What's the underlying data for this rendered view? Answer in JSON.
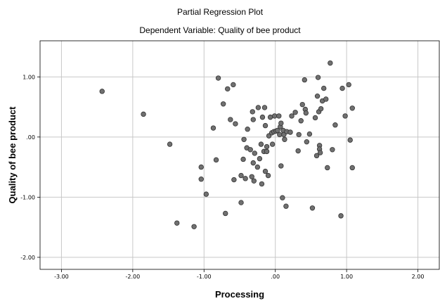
{
  "chart_data": {
    "type": "scatter",
    "title": "Partial Regression Plot",
    "subtitle": "Dependent Variable: Quality of bee product",
    "xlabel": "Processing",
    "ylabel": "Quality of bee product",
    "xlim": [
      -3.3,
      2.3
    ],
    "ylim": [
      -2.2,
      1.6
    ],
    "x_ticks": [
      {
        "value": -3,
        "label": "-3.00"
      },
      {
        "value": -2,
        "label": "-2.00"
      },
      {
        "value": -1,
        "label": "-1.00"
      },
      {
        "value": 0,
        "label": ".00"
      },
      {
        "value": 1,
        "label": "1.00"
      },
      {
        "value": 2,
        "label": "2.00"
      }
    ],
    "y_ticks": [
      {
        "value": 1,
        "label": "1.00"
      },
      {
        "value": 0,
        "label": ".00"
      },
      {
        "value": -1,
        "label": "-1.00"
      },
      {
        "value": -2,
        "label": "-2.00"
      }
    ],
    "grid": true,
    "marker_color": "#707070",
    "grid_color": "#c8c8c8",
    "points": [
      {
        "x": -2.43,
        "y": 0.76
      },
      {
        "x": -1.85,
        "y": 0.38
      },
      {
        "x": -1.48,
        "y": -0.12
      },
      {
        "x": -1.38,
        "y": -1.43
      },
      {
        "x": -1.14,
        "y": -1.49
      },
      {
        "x": -1.04,
        "y": -0.5
      },
      {
        "x": -1.04,
        "y": -0.7
      },
      {
        "x": -0.97,
        "y": -0.95
      },
      {
        "x": -0.87,
        "y": 0.15
      },
      {
        "x": -0.83,
        "y": -0.38
      },
      {
        "x": -0.8,
        "y": 0.98
      },
      {
        "x": -0.73,
        "y": 0.55
      },
      {
        "x": -0.7,
        "y": -1.27
      },
      {
        "x": -0.67,
        "y": 0.8
      },
      {
        "x": -0.63,
        "y": 0.29
      },
      {
        "x": -0.59,
        "y": 0.87
      },
      {
        "x": -0.58,
        "y": -0.71
      },
      {
        "x": -0.56,
        "y": 0.22
      },
      {
        "x": -0.48,
        "y": -1.09
      },
      {
        "x": -0.48,
        "y": -0.64
      },
      {
        "x": -0.45,
        "y": -0.37
      },
      {
        "x": -0.44,
        "y": -0.04
      },
      {
        "x": -0.42,
        "y": -0.69
      },
      {
        "x": -0.4,
        "y": -0.18
      },
      {
        "x": -0.39,
        "y": 0.13
      },
      {
        "x": -0.35,
        "y": -0.21
      },
      {
        "x": -0.33,
        "y": -0.66
      },
      {
        "x": -0.32,
        "y": 0.42
      },
      {
        "x": -0.31,
        "y": -0.43
      },
      {
        "x": -0.31,
        "y": 0.29
      },
      {
        "x": -0.3,
        "y": -0.73
      },
      {
        "x": -0.29,
        "y": -0.27
      },
      {
        "x": -0.25,
        "y": -0.5
      },
      {
        "x": -0.24,
        "y": 0.49
      },
      {
        "x": -0.22,
        "y": -0.36
      },
      {
        "x": -0.2,
        "y": -0.12
      },
      {
        "x": -0.19,
        "y": -0.78
      },
      {
        "x": -0.18,
        "y": 0.33
      },
      {
        "x": -0.16,
        "y": -0.24
      },
      {
        "x": -0.15,
        "y": 0.49
      },
      {
        "x": -0.14,
        "y": -0.57
      },
      {
        "x": -0.14,
        "y": 0.19
      },
      {
        "x": -0.12,
        "y": -0.16
      },
      {
        "x": -0.12,
        "y": -0.24
      },
      {
        "x": -0.1,
        "y": -0.64
      },
      {
        "x": -0.09,
        "y": 0.02
      },
      {
        "x": -0.07,
        "y": 0.33
      },
      {
        "x": -0.05,
        "y": 0.07
      },
      {
        "x": -0.04,
        "y": -0.12
      },
      {
        "x": -0.02,
        "y": 0.09
      },
      {
        "x": -0.01,
        "y": 0.35
      },
      {
        "x": 0.01,
        "y": 0.1
      },
      {
        "x": 0.03,
        "y": 0.11
      },
      {
        "x": 0.05,
        "y": 0.35
      },
      {
        "x": 0.06,
        "y": 0.04
      },
      {
        "x": 0.07,
        "y": 0.17
      },
      {
        "x": 0.08,
        "y": 0.23
      },
      {
        "x": 0.08,
        "y": -0.48
      },
      {
        "x": 0.1,
        "y": -1.01
      },
      {
        "x": 0.11,
        "y": 0.11
      },
      {
        "x": 0.12,
        "y": 0.04
      },
      {
        "x": 0.13,
        "y": -0.04
      },
      {
        "x": 0.15,
        "y": -1.15
      },
      {
        "x": 0.16,
        "y": 0.09
      },
      {
        "x": 0.21,
        "y": 0.08
      },
      {
        "x": 0.23,
        "y": 0.35
      },
      {
        "x": 0.28,
        "y": 0.41
      },
      {
        "x": 0.32,
        "y": -0.23
      },
      {
        "x": 0.33,
        "y": 0.04
      },
      {
        "x": 0.36,
        "y": 0.27
      },
      {
        "x": 0.38,
        "y": 0.54
      },
      {
        "x": 0.41,
        "y": 0.95
      },
      {
        "x": 0.42,
        "y": 0.46
      },
      {
        "x": 0.43,
        "y": 0.4
      },
      {
        "x": 0.44,
        "y": -0.08
      },
      {
        "x": 0.48,
        "y": 0.05
      },
      {
        "x": 0.52,
        "y": -1.18
      },
      {
        "x": 0.56,
        "y": 0.32
      },
      {
        "x": 0.58,
        "y": -0.31
      },
      {
        "x": 0.59,
        "y": 0.68
      },
      {
        "x": 0.6,
        "y": 0.99
      },
      {
        "x": 0.61,
        "y": 0.42
      },
      {
        "x": 0.62,
        "y": -0.14
      },
      {
        "x": 0.62,
        "y": -0.2
      },
      {
        "x": 0.63,
        "y": -0.26
      },
      {
        "x": 0.64,
        "y": 0.47
      },
      {
        "x": 0.66,
        "y": 0.6
      },
      {
        "x": 0.68,
        "y": 0.81
      },
      {
        "x": 0.71,
        "y": 0.63
      },
      {
        "x": 0.73,
        "y": -0.51
      },
      {
        "x": 0.77,
        "y": 1.23
      },
      {
        "x": 0.8,
        "y": -0.21
      },
      {
        "x": 0.84,
        "y": 0.2
      },
      {
        "x": 0.92,
        "y": -1.31
      },
      {
        "x": 0.94,
        "y": 0.81
      },
      {
        "x": 0.98,
        "y": 0.35
      },
      {
        "x": 1.03,
        "y": 0.87
      },
      {
        "x": 1.05,
        "y": -0.05
      },
      {
        "x": 1.08,
        "y": -0.51
      },
      {
        "x": 1.08,
        "y": 0.48
      }
    ]
  }
}
